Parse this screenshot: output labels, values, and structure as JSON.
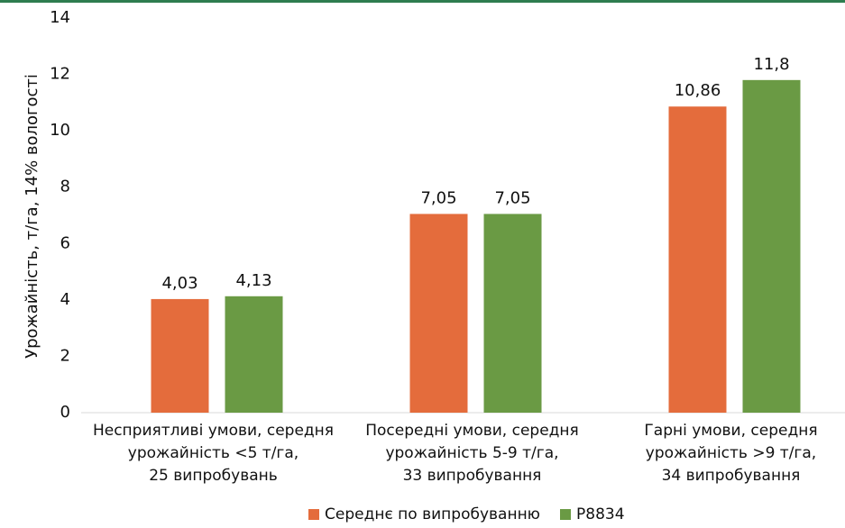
{
  "chart_data": {
    "type": "bar",
    "y_label": "Урожайність, т/га, 14% вологості",
    "categories": [
      "Несприятливі умови, середня\nурожайність <5 т/га,\n25 випробувань",
      "Посередні умови, середня\nурожайність 5-9 т/га,\n33 випробування",
      "Гарні умови, середня\nурожайність >9 т/га,\n34 випробування"
    ],
    "series": [
      {
        "name": "Середнє по випробуванню",
        "color": "#e46c3c",
        "values": [
          4.03,
          7.05,
          10.86
        ],
        "value_labels": [
          "4,03",
          "7,05",
          "10,86"
        ]
      },
      {
        "name": "P8834",
        "color": "#6a9a44",
        "values": [
          4.13,
          7.05,
          11.8
        ],
        "value_labels": [
          "4,13",
          "7,05",
          "11,8"
        ]
      }
    ],
    "ylim": [
      0,
      14
    ],
    "yticks": [
      0,
      2,
      4,
      6,
      8,
      10,
      12,
      14
    ],
    "grid": false,
    "legend": "bottom"
  }
}
